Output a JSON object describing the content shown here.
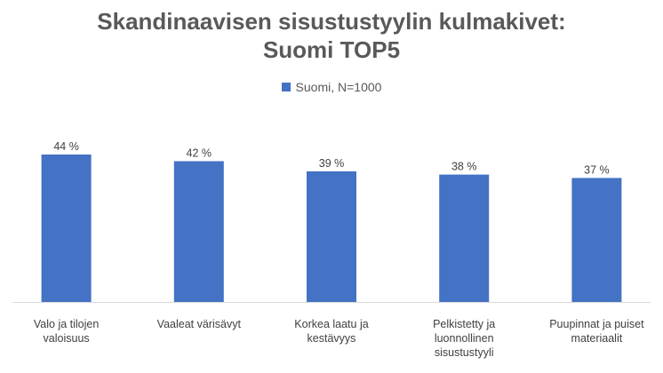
{
  "chart_data": {
    "type": "bar",
    "title": "Skandinaavisen sisustustyylin kulmakivet:",
    "subtitle": "Suomi TOP5",
    "categories": [
      "Valo ja tilojen valoisuus",
      "Vaaleat värisävyt",
      "Korkea laatu ja kestävyys",
      "Pelkistetty ja luonnollinen sisustustyyli",
      "Puupinnat ja puiset materiaalit"
    ],
    "series": [
      {
        "name": "Suomi, N=1000",
        "values": [
          44,
          42,
          39,
          38,
          37
        ],
        "data_labels": [
          "44 %",
          "42 %",
          "39 %",
          "38 %",
          "37 %"
        ],
        "color": "#4472C4"
      }
    ],
    "ylim": [
      0,
      50
    ],
    "grid": false,
    "legend_position": "top",
    "xlabel": "",
    "ylabel": ""
  }
}
